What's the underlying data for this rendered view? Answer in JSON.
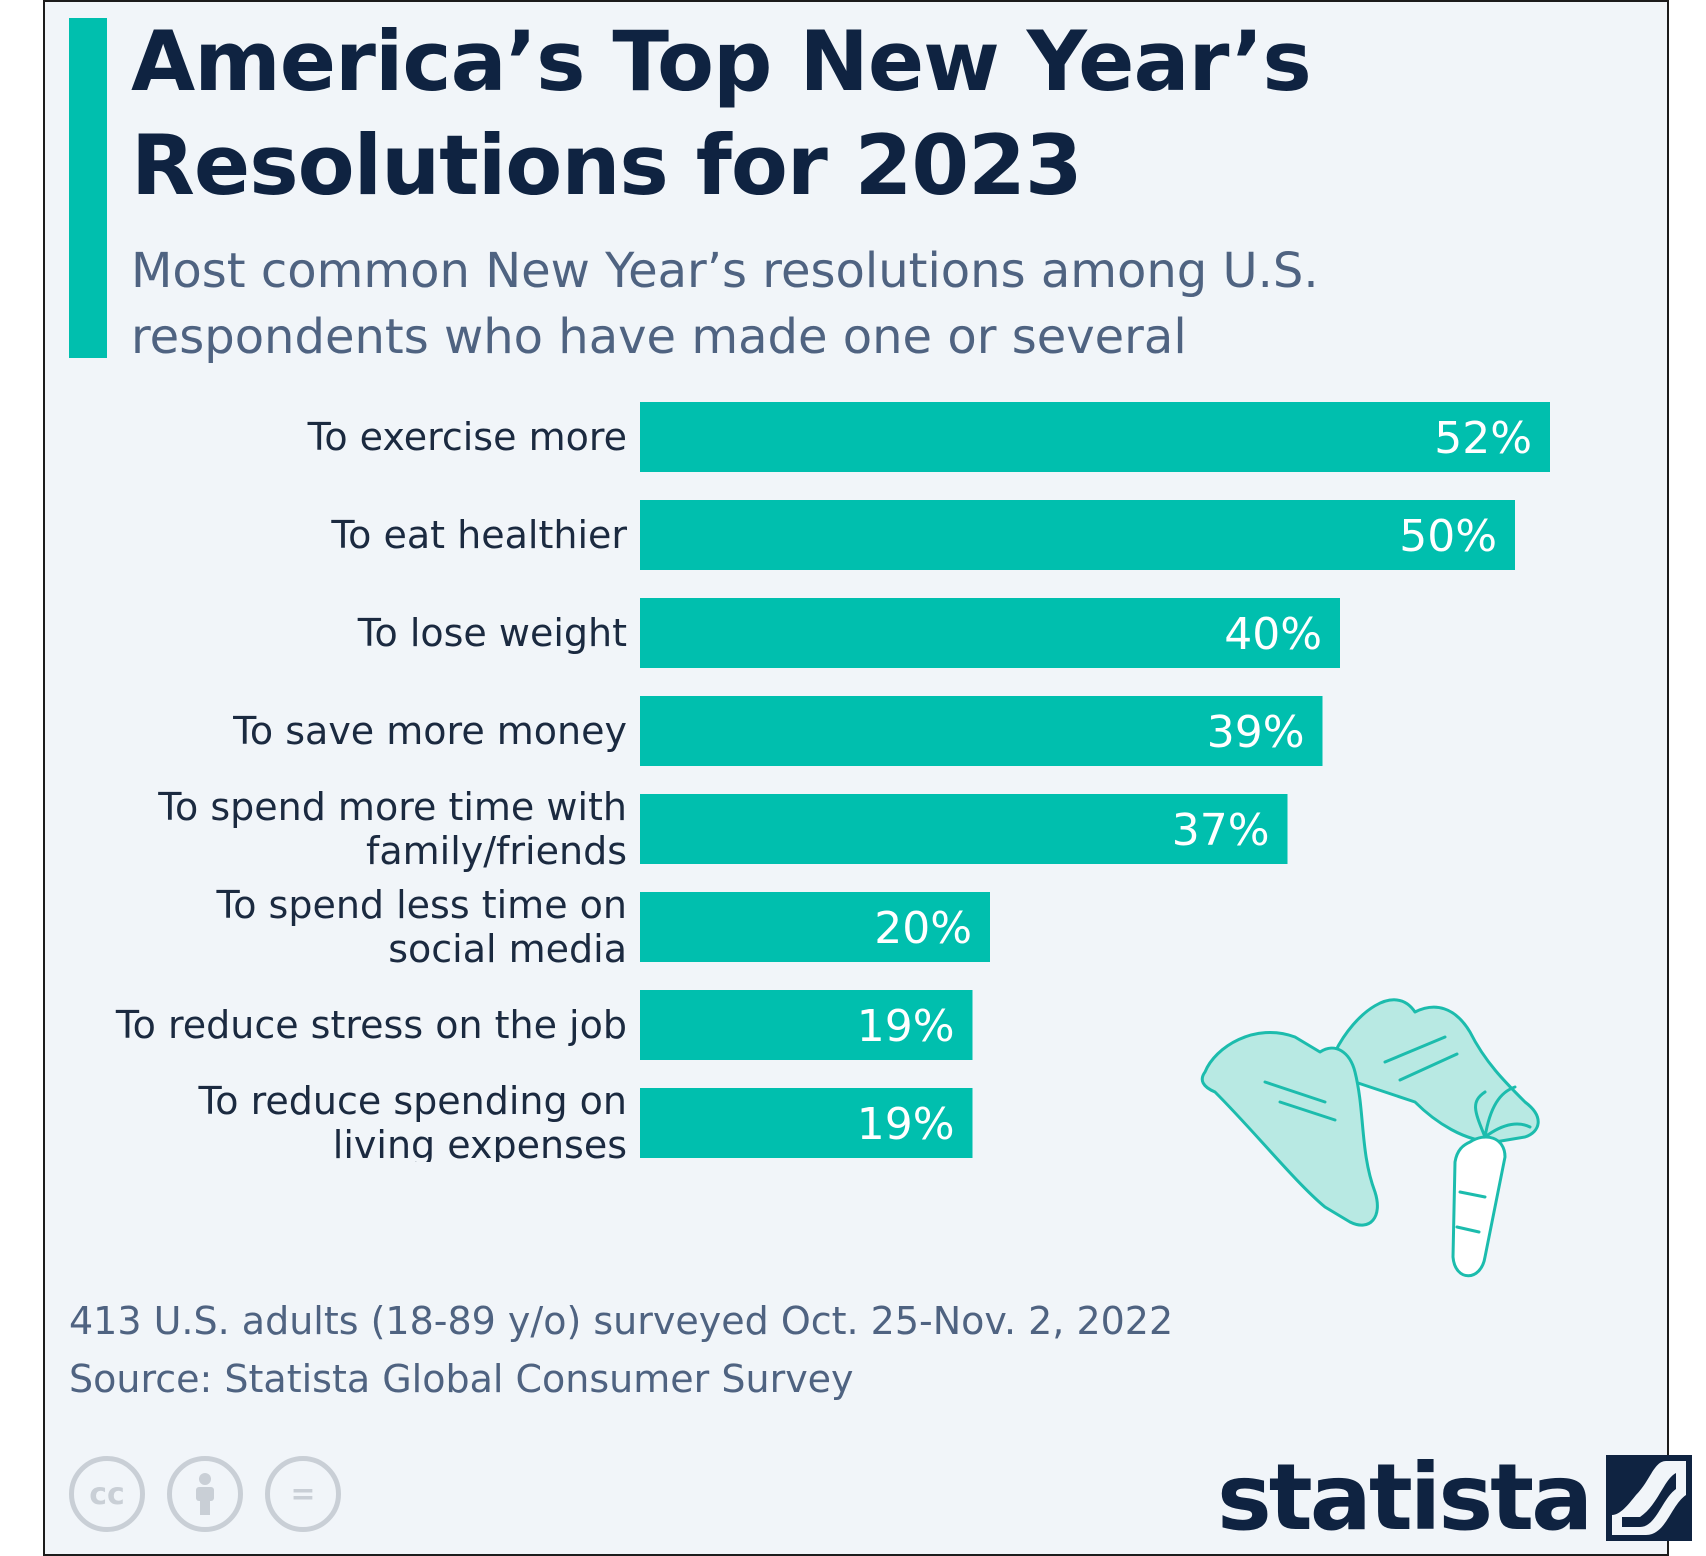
{
  "header": {
    "title": "America’s Top New Year’s Resolutions for 2023",
    "subtitle": "Most common New Year’s resolutions among U.S. respondents who have made one or several"
  },
  "chart_data": {
    "type": "bar",
    "orientation": "horizontal",
    "categories": [
      [
        "To exercise more"
      ],
      [
        "To eat healthier"
      ],
      [
        "To lose weight"
      ],
      [
        "To save more money"
      ],
      [
        "To spend more time with",
        "family/friends"
      ],
      [
        "To spend less time on",
        "social media"
      ],
      [
        "To reduce stress on the job"
      ],
      [
        "To reduce spending on",
        "living expenses"
      ]
    ],
    "values": [
      52,
      50,
      40,
      39,
      37,
      20,
      19,
      19
    ],
    "value_labels": [
      "52%",
      "50%",
      "40%",
      "39%",
      "37%",
      "20%",
      "19%",
      "19%"
    ],
    "xlim": [
      0,
      52
    ],
    "bar_color": "#00bfae",
    "grid": false,
    "legend": "none"
  },
  "footer": {
    "note": "413 U.S. adults (18-89 y/o) surveyed Oct. 25-Nov. 2, 2022",
    "source": "Source: Statista Global Consumer Survey",
    "brand": "statista",
    "license_icons": [
      {
        "name": "cc-icon",
        "glyph": "cc"
      },
      {
        "name": "attribution-icon",
        "glyph": ""
      },
      {
        "name": "no-derivatives-icon",
        "glyph": "="
      }
    ]
  },
  "colors": {
    "accent": "#00bfae",
    "title": "#0f2341",
    "subtitle": "#4f6381",
    "background": "#f1f5f9"
  }
}
